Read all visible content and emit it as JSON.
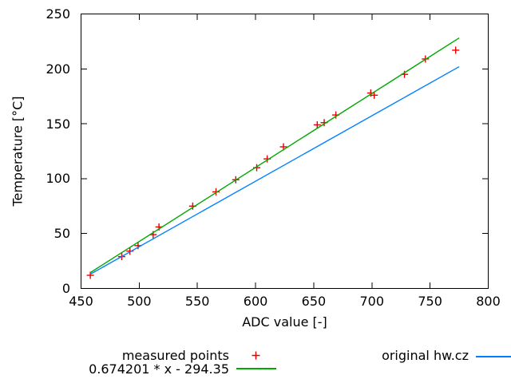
{
  "chart_data": {
    "type": "scatter",
    "title": "",
    "xlabel": "ADC value [-]",
    "ylabel": "Temperature [°C]",
    "xlim": [
      450,
      800
    ],
    "ylim": [
      0,
      250
    ],
    "x_ticks": [
      450,
      500,
      550,
      600,
      650,
      700,
      750,
      800
    ],
    "y_ticks": [
      0,
      50,
      100,
      150,
      200,
      250
    ],
    "grid": false,
    "background": "#ffffff",
    "axis_color": "#000000",
    "legend_position": "bottom",
    "series": [
      {
        "name": "measured points",
        "kind": "scatter",
        "marker": "plus",
        "color": "#e60000",
        "points": [
          [
            458,
            12
          ],
          [
            485,
            29
          ],
          [
            492,
            34
          ],
          [
            499,
            39
          ],
          [
            512,
            49
          ],
          [
            517,
            56
          ],
          [
            546,
            75
          ],
          [
            566,
            88
          ],
          [
            583,
            99
          ],
          [
            601,
            110
          ],
          [
            610,
            118
          ],
          [
            624,
            129
          ],
          [
            653,
            149
          ],
          [
            659,
            151
          ],
          [
            669,
            158
          ],
          [
            699,
            178
          ],
          [
            702,
            176
          ],
          [
            728,
            195
          ],
          [
            746,
            209
          ],
          [
            772,
            217
          ]
        ]
      },
      {
        "name": "0.674201 * x - 294.35",
        "kind": "line",
        "color": "#00a800",
        "equation": {
          "slope": 0.674201,
          "intercept": -294.35
        },
        "x_range": [
          458,
          775
        ]
      },
      {
        "name": "original hw.cz",
        "kind": "line",
        "color": "#0080ff",
        "points": [
          [
            458,
            13
          ],
          [
            775,
            202
          ]
        ]
      }
    ]
  },
  "legend": {
    "measured_label": "measured points",
    "fit_label": "0.674201 * x - 294.35",
    "original_label": "original hw.cz"
  }
}
